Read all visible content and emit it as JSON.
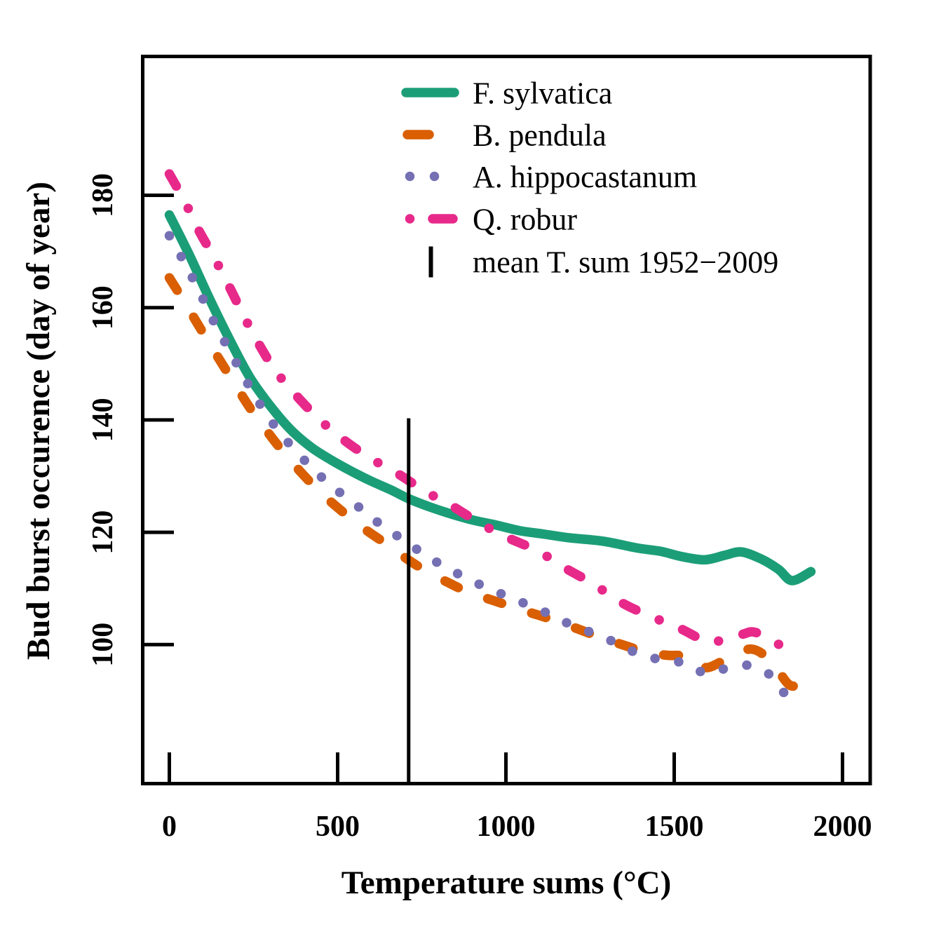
{
  "chart_data": {
    "type": "line",
    "title": "",
    "xlabel": "Temperature sums (°C)",
    "ylabel": "Bud burst occurence (day of year)",
    "x_ticks": [
      0,
      500,
      1000,
      1500,
      2000
    ],
    "y_ticks": [
      100,
      120,
      140,
      160,
      180
    ],
    "xlim": [
      -80,
      2082
    ],
    "ylim": [
      76,
      204
    ],
    "grid": false,
    "legend_position": "top-center-inside",
    "series": [
      {
        "name": "F. sylvatica",
        "color": "#1B9E77",
        "style": "solid",
        "points": [
          [
            0,
            176.5
          ],
          [
            60,
            169.3
          ],
          [
            120,
            161.5
          ],
          [
            180,
            154.2
          ],
          [
            240,
            147.5
          ],
          [
            300,
            142.5
          ],
          [
            360,
            138.3
          ],
          [
            420,
            135.2
          ],
          [
            480,
            132.9
          ],
          [
            540,
            130.9
          ],
          [
            600,
            129.1
          ],
          [
            660,
            127.5
          ],
          [
            710,
            126.0
          ],
          [
            770,
            124.6
          ],
          [
            830,
            123.4
          ],
          [
            900,
            122.2
          ],
          [
            970,
            121.3
          ],
          [
            1040,
            120.3
          ],
          [
            1110,
            119.7
          ],
          [
            1190,
            119.0
          ],
          [
            1290,
            118.4
          ],
          [
            1390,
            117.2
          ],
          [
            1460,
            116.6
          ],
          [
            1520,
            115.7
          ],
          [
            1590,
            115.1
          ],
          [
            1650,
            115.9
          ],
          [
            1700,
            116.5
          ],
          [
            1760,
            115.2
          ],
          [
            1810,
            113.4
          ],
          [
            1850,
            111.4
          ],
          [
            1906,
            113.0
          ]
        ]
      },
      {
        "name": "B. pendula",
        "color": "#D95F02",
        "style": "dashed",
        "points": [
          [
            0,
            165.3
          ],
          [
            45,
            161.0
          ],
          [
            90,
            156.5
          ],
          [
            140,
            151.6
          ],
          [
            190,
            146.8
          ],
          [
            240,
            142.1
          ],
          [
            290,
            138.0
          ],
          [
            340,
            134.2
          ],
          [
            400,
            130.1
          ],
          [
            460,
            126.5
          ],
          [
            520,
            123.4
          ],
          [
            580,
            120.6
          ],
          [
            640,
            118.1
          ],
          [
            700,
            115.5
          ],
          [
            760,
            113.2
          ],
          [
            820,
            111.3
          ],
          [
            890,
            109.3
          ],
          [
            960,
            107.9
          ],
          [
            1040,
            106.3
          ],
          [
            1120,
            104.8
          ],
          [
            1200,
            103.1
          ],
          [
            1280,
            101.3
          ],
          [
            1350,
            99.9
          ],
          [
            1420,
            98.6
          ],
          [
            1480,
            98.1
          ],
          [
            1550,
            97.9
          ],
          [
            1595,
            95.9
          ],
          [
            1660,
            97.6
          ],
          [
            1730,
            99.2
          ],
          [
            1790,
            96.9
          ],
          [
            1846,
            92.7
          ],
          [
            1900,
            94.0
          ]
        ]
      },
      {
        "name": "A. hippocastanum",
        "color": "#7570B3",
        "style": "dotted",
        "points": [
          [
            0,
            172.8
          ],
          [
            35,
            169.1
          ],
          [
            66,
            165.6
          ],
          [
            97,
            161.9
          ],
          [
            128,
            158.0
          ],
          [
            160,
            154.4
          ],
          [
            194,
            150.7
          ],
          [
            226,
            147.2
          ],
          [
            260,
            143.7
          ],
          [
            298,
            140.2
          ],
          [
            340,
            136.9
          ],
          [
            389,
            133.6
          ],
          [
            437,
            130.7
          ],
          [
            486,
            128.0
          ],
          [
            541,
            125.6
          ],
          [
            594,
            122.9
          ],
          [
            652,
            120.4
          ],
          [
            708,
            118.1
          ],
          [
            767,
            115.7
          ],
          [
            826,
            113.6
          ],
          [
            888,
            111.7
          ],
          [
            951,
            109.9
          ],
          [
            1013,
            108.4
          ],
          [
            1076,
            106.8
          ],
          [
            1142,
            105.1
          ],
          [
            1201,
            103.3
          ],
          [
            1271,
            101.8
          ],
          [
            1330,
            100.2
          ],
          [
            1396,
            98.3
          ],
          [
            1462,
            97.3
          ],
          [
            1531,
            96.7
          ],
          [
            1594,
            94.9
          ],
          [
            1656,
            95.8
          ],
          [
            1723,
            96.3
          ],
          [
            1785,
            94.6
          ],
          [
            1827,
            91.4
          ],
          [
            1881,
            90.3
          ]
        ]
      },
      {
        "name": "Q. robur",
        "color": "#E7298A",
        "style": "dashdot",
        "points": [
          [
            0,
            183.8
          ],
          [
            45,
            179.0
          ],
          [
            87,
            173.8
          ],
          [
            135,
            168.7
          ],
          [
            180,
            163.5
          ],
          [
            222,
            158.4
          ],
          [
            267,
            153.4
          ],
          [
            316,
            148.7
          ],
          [
            378,
            144.3
          ],
          [
            444,
            140.2
          ],
          [
            517,
            136.5
          ],
          [
            597,
            133.2
          ],
          [
            677,
            130.5
          ],
          [
            760,
            127.3
          ],
          [
            840,
            124.7
          ],
          [
            923,
            121.6
          ],
          [
            1007,
            119.0
          ],
          [
            1094,
            116.7
          ],
          [
            1177,
            113.6
          ],
          [
            1257,
            110.9
          ],
          [
            1340,
            107.6
          ],
          [
            1423,
            105.2
          ],
          [
            1510,
            103.1
          ],
          [
            1575,
            101.1
          ],
          [
            1611,
            100.4
          ],
          [
            1700,
            101.8
          ],
          [
            1740,
            102.2
          ],
          [
            1806,
            100.3
          ],
          [
            1840,
            96.9
          ]
        ]
      }
    ],
    "mean_line": {
      "label": "mean T. sum 1952−2009",
      "x": 711,
      "y_top": 140.3,
      "color": "#000000"
    },
    "legend": {
      "items": [
        {
          "label": "F. sylvatica",
          "series": 0
        },
        {
          "label": "B. pendula",
          "series": 1
        },
        {
          "label": "A. hippocastanum",
          "series": 2
        },
        {
          "label": "Q. robur",
          "series": 3
        },
        {
          "label": "mean T. sum 1952−2009",
          "series": "mean_line"
        }
      ]
    }
  }
}
